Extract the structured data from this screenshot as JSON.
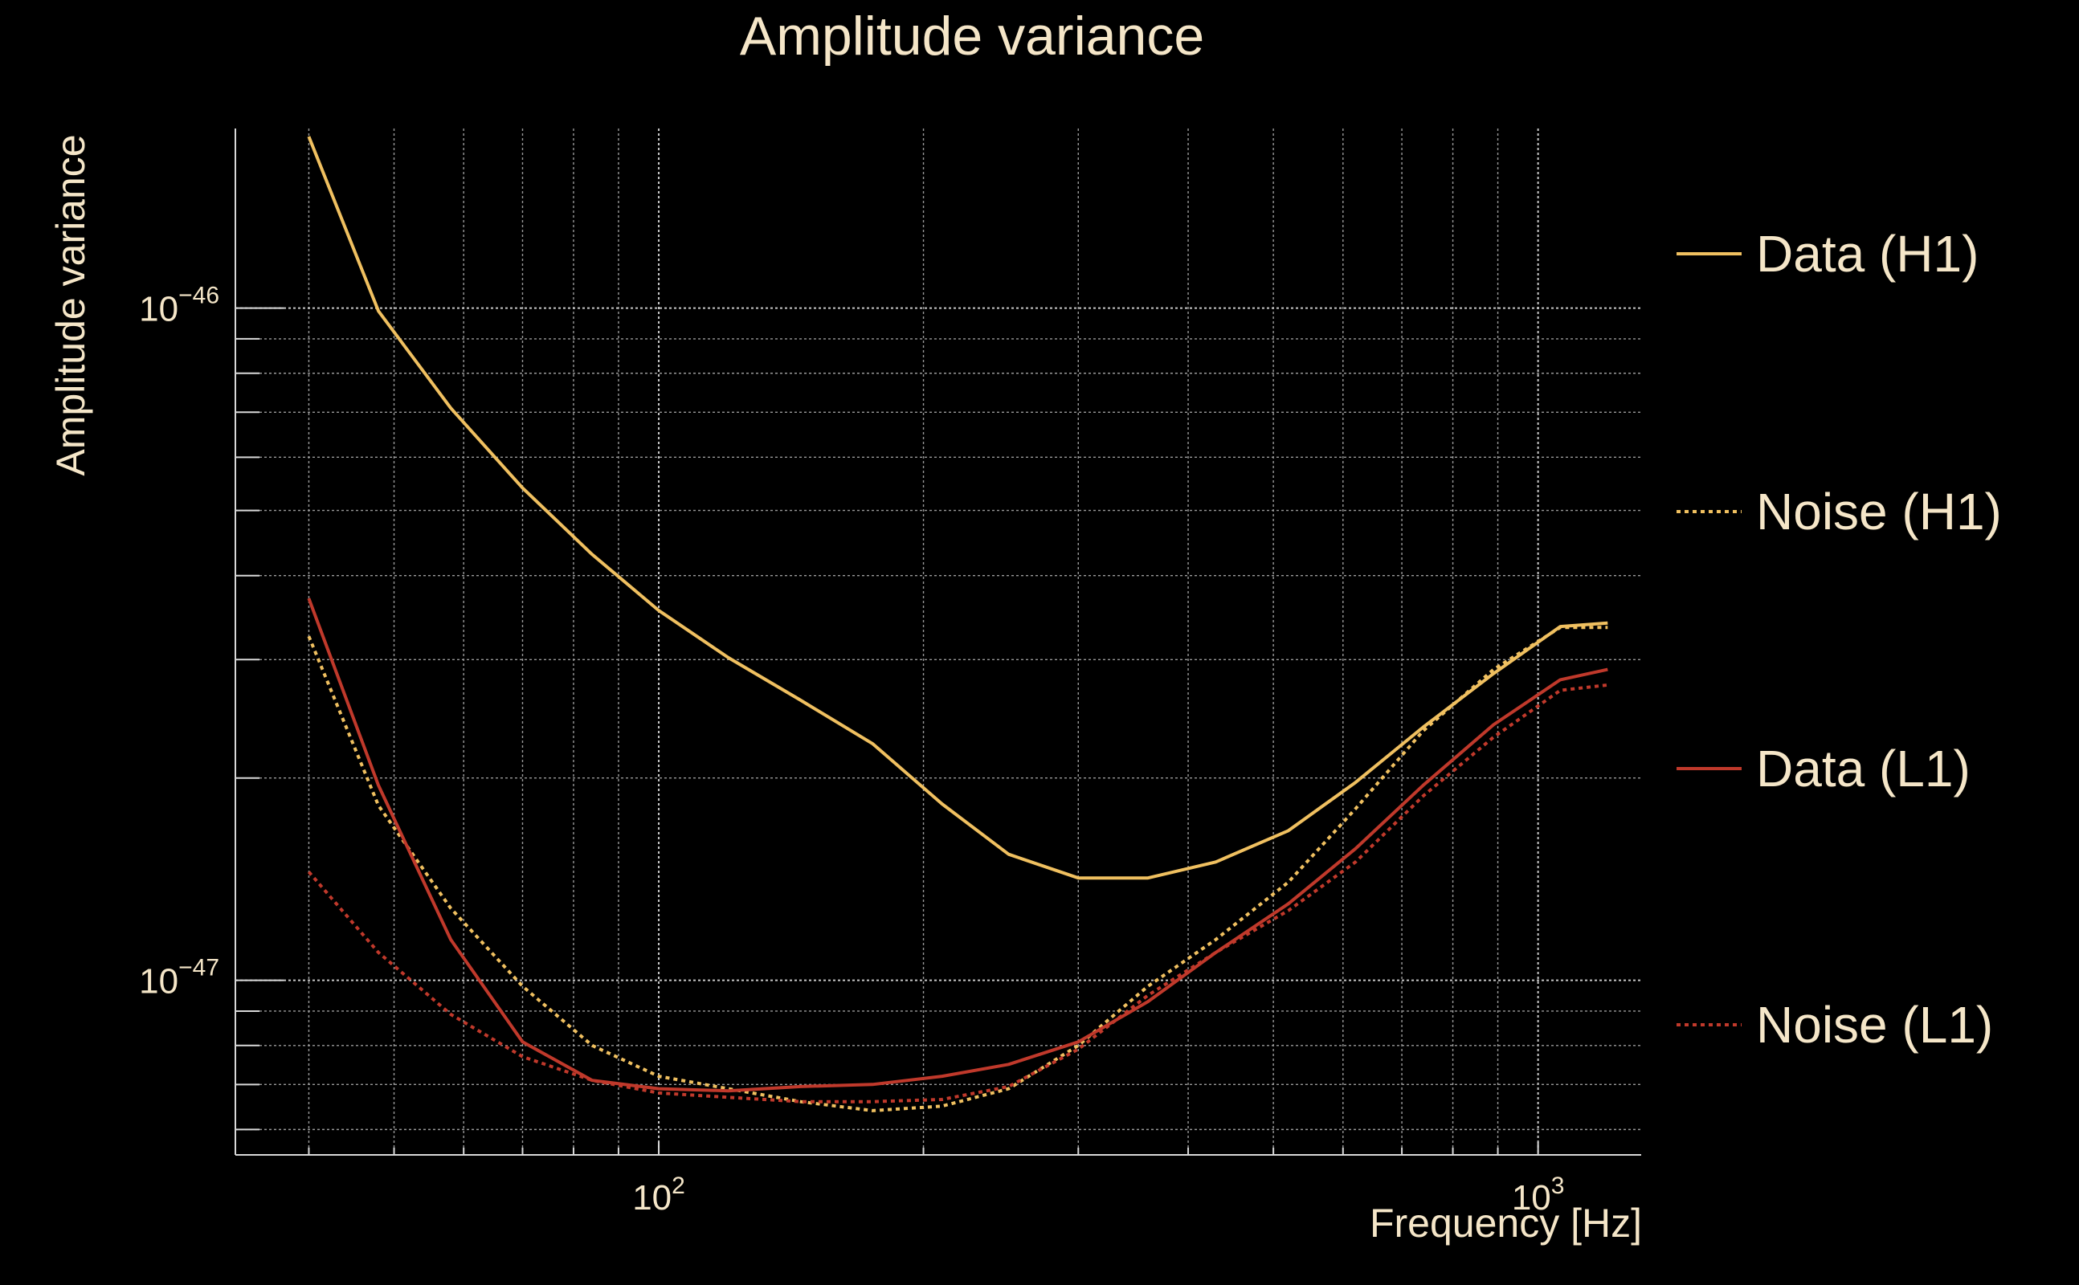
{
  "chart_data": {
    "type": "line",
    "title": "Amplitude variance",
    "xlabel": "Frequency [Hz]",
    "ylabel": "Amplitude variance",
    "xscale": "log",
    "yscale": "log",
    "xlim": [
      33,
      1310
    ],
    "ylim": [
      5.5e-48,
      1.85e-46
    ],
    "x_ticks": [
      {
        "value": 100,
        "base": "10",
        "exp": "2"
      },
      {
        "value": 1000,
        "base": "10",
        "exp": "3"
      }
    ],
    "y_ticks": [
      {
        "value": 1e-46,
        "base": "10",
        "exp": "−46"
      },
      {
        "value": 1e-47,
        "base": "10",
        "exp": "−47"
      }
    ],
    "grid": true,
    "legend_position": "right",
    "series": [
      {
        "name": "Data (H1)",
        "color": "#f0c060",
        "dash": "solid",
        "x": [
          40,
          48,
          58,
          70,
          84,
          100,
          120,
          145,
          175,
          210,
          250,
          300,
          360,
          430,
          520,
          620,
          740,
          890,
          1060,
          1200
        ],
        "y": [
          1.8e-46,
          9.9e-47,
          7.1e-47,
          5.4e-47,
          4.3e-47,
          3.55e-47,
          3.02e-47,
          2.61e-47,
          2.25e-47,
          1.83e-47,
          1.54e-47,
          1.42e-47,
          1.42e-47,
          1.5e-47,
          1.67e-47,
          1.97e-47,
          2.38e-47,
          2.86e-47,
          3.36e-47,
          3.4e-47
        ]
      },
      {
        "name": "Noise (H1)",
        "color": "#f0c060",
        "dash": "dotted",
        "x": [
          40,
          48,
          58,
          70,
          84,
          100,
          120,
          145,
          175,
          210,
          250,
          300,
          360,
          430,
          520,
          620,
          740,
          890,
          1060,
          1200
        ],
        "y": [
          3.25e-47,
          1.82e-47,
          1.28e-47,
          9.8e-48,
          8e-48,
          7.2e-48,
          6.9e-48,
          6.6e-48,
          6.4e-48,
          6.5e-48,
          6.9e-48,
          8e-48,
          9.8e-48,
          1.15e-47,
          1.4e-47,
          1.8e-47,
          2.35e-47,
          2.9e-47,
          3.35e-47,
          3.35e-47
        ]
      },
      {
        "name": "Data (L1)",
        "color": "#c0392b",
        "dash": "solid",
        "x": [
          40,
          48,
          58,
          70,
          84,
          100,
          120,
          145,
          175,
          210,
          250,
          300,
          360,
          430,
          520,
          620,
          740,
          890,
          1060,
          1200
        ],
        "y": [
          3.7e-47,
          1.95e-47,
          1.15e-47,
          8.1e-48,
          7.1e-48,
          6.9e-48,
          6.85e-48,
          6.95e-48,
          7e-48,
          7.2e-48,
          7.5e-48,
          8.1e-48,
          9.3e-48,
          1.1e-47,
          1.3e-47,
          1.57e-47,
          1.95e-47,
          2.4e-47,
          2.8e-47,
          2.9e-47
        ]
      },
      {
        "name": "Noise (L1)",
        "color": "#c0392b",
        "dash": "dotted",
        "x": [
          40,
          48,
          58,
          70,
          84,
          100,
          120,
          145,
          175,
          210,
          250,
          300,
          360,
          430,
          520,
          620,
          740,
          890,
          1060,
          1200
        ],
        "y": [
          1.45e-47,
          1.1e-47,
          8.9e-48,
          7.7e-48,
          7.1e-48,
          6.8e-48,
          6.7e-48,
          6.6e-48,
          6.6e-48,
          6.65e-48,
          6.95e-48,
          7.9e-48,
          9.5e-48,
          1.1e-47,
          1.27e-47,
          1.5e-47,
          1.88e-47,
          2.3e-47,
          2.7e-47,
          2.75e-47
        ]
      }
    ]
  }
}
